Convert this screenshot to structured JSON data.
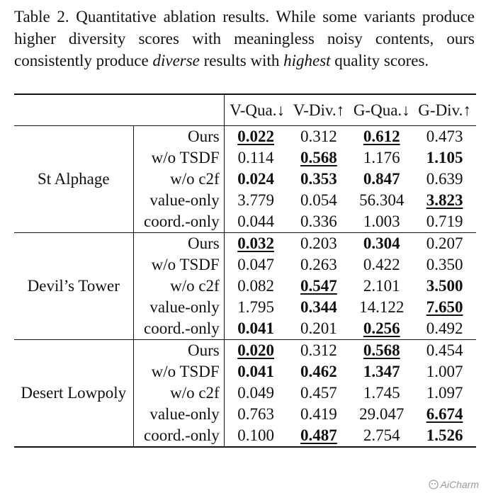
{
  "caption": {
    "prefix": "Table 2.  Quantitative ablation results.  While some variants produce higher diversity scores with meaningless noisy contents, ours consistently produce ",
    "em1": "diverse",
    "mid": " results with ",
    "em2": "highest",
    "suffix": " quality scores."
  },
  "headers": [
    "V-Qua.↓",
    "V-Div.↑",
    "G-Qua.↓",
    "G-Div.↑"
  ],
  "groups": [
    {
      "scene": "St Alphage",
      "rows": [
        {
          "variant": "Ours",
          "values": [
            {
              "v": "0.022",
              "b": true,
              "u": true
            },
            {
              "v": "0.312"
            },
            {
              "v": "0.612",
              "b": true,
              "u": true
            },
            {
              "v": "0.473"
            }
          ]
        },
        {
          "variant": "w/o TSDF",
          "values": [
            {
              "v": "0.114"
            },
            {
              "v": "0.568",
              "b": true,
              "u": true
            },
            {
              "v": "1.176"
            },
            {
              "v": "1.105",
              "b": true
            }
          ]
        },
        {
          "variant": "w/o c2f",
          "values": [
            {
              "v": "0.024",
              "b": true
            },
            {
              "v": "0.353",
              "b": true
            },
            {
              "v": "0.847",
              "b": true
            },
            {
              "v": "0.639"
            }
          ]
        },
        {
          "variant": "value-only",
          "values": [
            {
              "v": "3.779"
            },
            {
              "v": "0.054"
            },
            {
              "v": "56.304"
            },
            {
              "v": "3.823",
              "b": true,
              "u": true
            }
          ]
        },
        {
          "variant": "coord.-only",
          "values": [
            {
              "v": "0.044"
            },
            {
              "v": "0.336"
            },
            {
              "v": "1.003"
            },
            {
              "v": "0.719"
            }
          ]
        }
      ]
    },
    {
      "scene": "Devil’s Tower",
      "rows": [
        {
          "variant": "Ours",
          "values": [
            {
              "v": "0.032",
              "b": true,
              "u": true
            },
            {
              "v": "0.203"
            },
            {
              "v": "0.304",
              "b": true
            },
            {
              "v": "0.207"
            }
          ]
        },
        {
          "variant": "w/o TSDF",
          "values": [
            {
              "v": "0.047"
            },
            {
              "v": "0.263"
            },
            {
              "v": "0.422"
            },
            {
              "v": "0.350"
            }
          ]
        },
        {
          "variant": "w/o c2f",
          "values": [
            {
              "v": "0.082"
            },
            {
              "v": "0.547",
              "b": true,
              "u": true
            },
            {
              "v": "2.101"
            },
            {
              "v": "3.500",
              "b": true
            }
          ]
        },
        {
          "variant": "value-only",
          "values": [
            {
              "v": "1.795"
            },
            {
              "v": "0.344",
              "b": true
            },
            {
              "v": "14.122"
            },
            {
              "v": "7.650",
              "b": true,
              "u": true
            }
          ]
        },
        {
          "variant": "coord.-only",
          "values": [
            {
              "v": "0.041",
              "b": true
            },
            {
              "v": "0.201"
            },
            {
              "v": "0.256",
              "b": true,
              "u": true
            },
            {
              "v": "0.492"
            }
          ]
        }
      ]
    },
    {
      "scene": "Desert Lowpoly",
      "rows": [
        {
          "variant": "Ours",
          "values": [
            {
              "v": "0.020",
              "b": true,
              "u": true
            },
            {
              "v": "0.312"
            },
            {
              "v": "0.568",
              "b": true,
              "u": true
            },
            {
              "v": "0.454"
            }
          ]
        },
        {
          "variant": "w/o TSDF",
          "values": [
            {
              "v": "0.041",
              "b": true
            },
            {
              "v": "0.462",
              "b": true
            },
            {
              "v": "1.347",
              "b": true
            },
            {
              "v": "1.007"
            }
          ]
        },
        {
          "variant": "w/o c2f",
          "values": [
            {
              "v": "0.049"
            },
            {
              "v": "0.457"
            },
            {
              "v": "1.745"
            },
            {
              "v": "1.097"
            }
          ]
        },
        {
          "variant": "value-only",
          "values": [
            {
              "v": "0.763"
            },
            {
              "v": "0.419"
            },
            {
              "v": "29.047"
            },
            {
              "v": "6.674",
              "b": true,
              "u": true
            }
          ]
        },
        {
          "variant": "coord.-only",
          "values": [
            {
              "v": "0.100"
            },
            {
              "v": "0.487",
              "b": true,
              "u": true
            },
            {
              "v": "2.754"
            },
            {
              "v": "1.526",
              "b": true
            }
          ]
        }
      ]
    }
  ],
  "watermark": "AiCharm"
}
